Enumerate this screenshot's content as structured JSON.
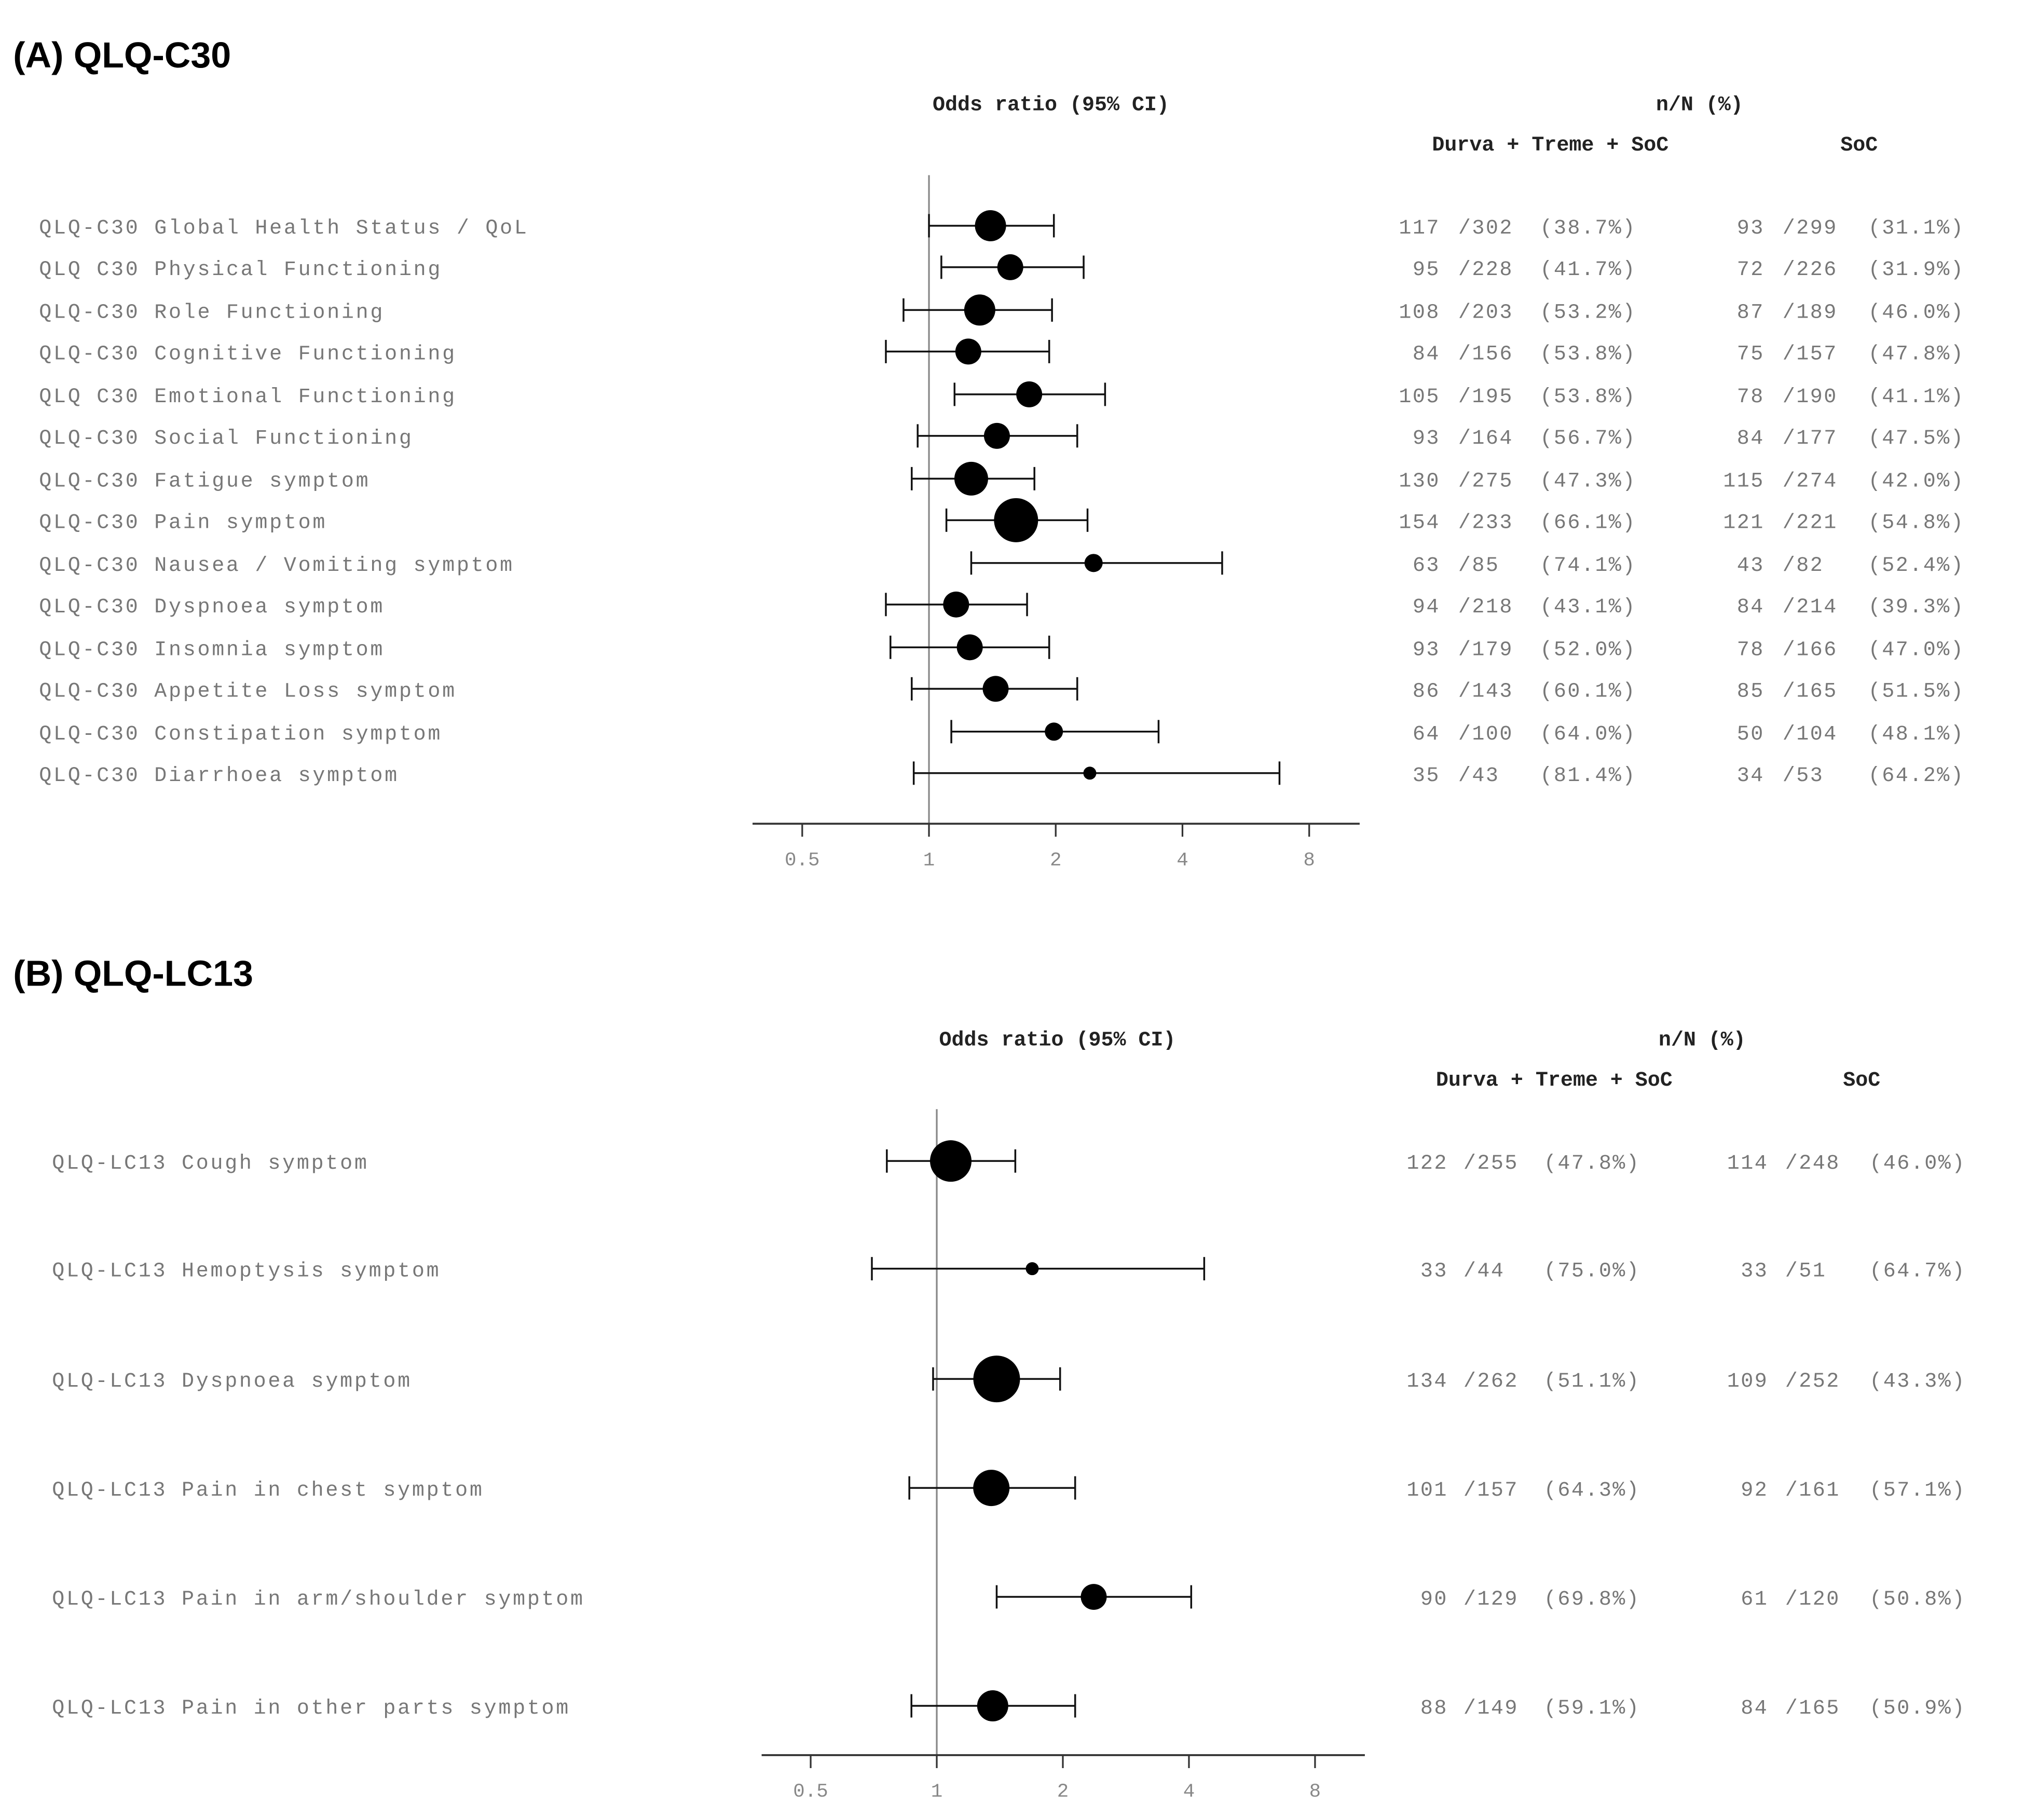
{
  "chart_data": [
    {
      "type": "forest",
      "title": "(A) QLQ-C30",
      "xlabel": "Odds ratio (95% CI)",
      "x_scale": "log2",
      "xlim": [
        0.35,
        11
      ],
      "x_ticks": [
        "0.5",
        "1",
        "2",
        "4",
        "8"
      ],
      "reference_line": 1,
      "table_header": "n/N (%)",
      "group_labels": [
        "Durva + Treme + SoC",
        "SoC"
      ],
      "rows": [
        {
          "label": "QLQ-C30 Global Health Status / QoL",
          "or": 1.4,
          "lo": 1.0,
          "hi": 1.98,
          "weight": 12,
          "g1": {
            "n": "117",
            "N": "/302",
            "pct": "(38.7%)"
          },
          "g2": {
            "n": "93",
            "N": "/299",
            "pct": "(31.1%)"
          }
        },
        {
          "label": "QLQ C30 Physical Functioning",
          "or": 1.56,
          "lo": 1.07,
          "hi": 2.33,
          "weight": 10,
          "g1": {
            "n": "95",
            "N": "/228",
            "pct": "(41.7%)"
          },
          "g2": {
            "n": "72",
            "N": "/226",
            "pct": "(31.9%)"
          }
        },
        {
          "label": "QLQ-C30 Role Functioning",
          "or": 1.32,
          "lo": 0.87,
          "hi": 1.96,
          "weight": 12,
          "g1": {
            "n": "108",
            "N": "/203",
            "pct": "(53.2%)"
          },
          "g2": {
            "n": "87",
            "N": "/189",
            "pct": "(46.0%)"
          }
        },
        {
          "label": "QLQ-C30 Cognitive Functioning",
          "or": 1.24,
          "lo": 0.79,
          "hi": 1.93,
          "weight": 10,
          "g1": {
            "n": "84",
            "N": "/156",
            "pct": "(53.8%)"
          },
          "g2": {
            "n": "75",
            "N": "/157",
            "pct": "(47.8%)"
          }
        },
        {
          "label": "QLQ C30 Emotional Functioning",
          "or": 1.73,
          "lo": 1.15,
          "hi": 2.62,
          "weight": 10,
          "g1": {
            "n": "105",
            "N": "/195",
            "pct": "(53.8%)"
          },
          "g2": {
            "n": "78",
            "N": "/190",
            "pct": "(41.1%)"
          }
        },
        {
          "label": "QLQ-C30 Social Functioning",
          "or": 1.45,
          "lo": 0.94,
          "hi": 2.25,
          "weight": 10,
          "g1": {
            "n": "93",
            "N": "/164",
            "pct": "(56.7%)"
          },
          "g2": {
            "n": "84",
            "N": "/177",
            "pct": "(47.5%)"
          }
        },
        {
          "label": "QLQ-C30 Fatigue symptom",
          "or": 1.26,
          "lo": 0.91,
          "hi": 1.78,
          "weight": 13,
          "g1": {
            "n": "130",
            "N": "/275",
            "pct": "(47.3%)"
          },
          "g2": {
            "n": "115",
            "N": "/274",
            "pct": "(42.0%)"
          }
        },
        {
          "label": "QLQ-C30 Pain symptom",
          "or": 1.61,
          "lo": 1.1,
          "hi": 2.38,
          "weight": 17,
          "g1": {
            "n": "154",
            "N": "/233",
            "pct": "(66.1%)"
          },
          "g2": {
            "n": "121",
            "N": "/221",
            "pct": "(54.8%)"
          }
        },
        {
          "label": "QLQ-C30 Nausea / Vomiting symptom",
          "or": 2.46,
          "lo": 1.26,
          "hi": 4.97,
          "weight": 7,
          "g1": {
            "n": "63",
            "N": "/85",
            "pct": "(74.1%)"
          },
          "g2": {
            "n": "43",
            "N": "/82",
            "pct": "(52.4%)"
          }
        },
        {
          "label": "QLQ-C30 Dyspnoea symptom",
          "or": 1.16,
          "lo": 0.79,
          "hi": 1.71,
          "weight": 10,
          "g1": {
            "n": "94",
            "N": "/218",
            "pct": "(43.1%)"
          },
          "g2": {
            "n": "84",
            "N": "/214",
            "pct": "(39.3%)"
          }
        },
        {
          "label": "QLQ-C30 Insomnia symptom",
          "or": 1.25,
          "lo": 0.81,
          "hi": 1.93,
          "weight": 10,
          "g1": {
            "n": "93",
            "N": "/179",
            "pct": "(52.0%)"
          },
          "g2": {
            "n": "78",
            "N": "/166",
            "pct": "(47.0%)"
          }
        },
        {
          "label": "QLQ-C30 Appetite Loss symptom",
          "or": 1.44,
          "lo": 0.91,
          "hi": 2.25,
          "weight": 10,
          "g1": {
            "n": "86",
            "N": "/143",
            "pct": "(60.1%)"
          },
          "g2": {
            "n": "85",
            "N": "/165",
            "pct": "(51.5%)"
          }
        },
        {
          "label": "QLQ-C30 Constipation symptom",
          "or": 1.98,
          "lo": 1.13,
          "hi": 3.51,
          "weight": 7,
          "g1": {
            "n": "64",
            "N": "/100",
            "pct": "(64.0%)"
          },
          "g2": {
            "n": "50",
            "N": "/104",
            "pct": "(48.1%)"
          }
        },
        {
          "label": "QLQ-C30 Diarrhoea symptom",
          "or": 2.41,
          "lo": 0.92,
          "hi": 6.8,
          "weight": 5,
          "g1": {
            "n": "35",
            "N": "/43",
            "pct": "(81.4%)"
          },
          "g2": {
            "n": "34",
            "N": "/53",
            "pct": "(64.2%)"
          }
        }
      ]
    },
    {
      "type": "forest",
      "title": "(B) QLQ-LC13",
      "xlabel": "Odds ratio (95% CI)",
      "x_scale": "log2",
      "xlim": [
        0.35,
        11
      ],
      "x_ticks": [
        "0.5",
        "1",
        "2",
        "4",
        "8"
      ],
      "reference_line": 1,
      "table_header": "n/N (%)",
      "group_labels": [
        "Durva + Treme + SoC",
        "SoC"
      ],
      "rows": [
        {
          "label": "QLQ-LC13 Cough symptom",
          "or": 1.08,
          "lo": 0.76,
          "hi": 1.54,
          "weight": 16,
          "g1": {
            "n": "122",
            "N": "/255",
            "pct": "(47.8%)"
          },
          "g2": {
            "n": "114",
            "N": "/248",
            "pct": "(46.0%)"
          }
        },
        {
          "label": "QLQ-LC13 Hemoptysis symptom",
          "or": 1.69,
          "lo": 0.7,
          "hi": 4.35,
          "weight": 5,
          "g1": {
            "n": "33",
            "N": "/44",
            "pct": "(75.0%)"
          },
          "g2": {
            "n": "33",
            "N": "/51",
            "pct": "(64.7%)"
          }
        },
        {
          "label": "QLQ-LC13 Dyspnoea symptom",
          "or": 1.39,
          "lo": 0.98,
          "hi": 1.97,
          "weight": 18,
          "g1": {
            "n": "134",
            "N": "/262",
            "pct": "(51.1%)"
          },
          "g2": {
            "n": "109",
            "N": "/252",
            "pct": "(43.3%)"
          }
        },
        {
          "label": "QLQ-LC13 Pain in chest symptom",
          "or": 1.35,
          "lo": 0.86,
          "hi": 2.14,
          "weight": 14,
          "g1": {
            "n": "101",
            "N": "/157",
            "pct": "(64.3%)"
          },
          "g2": {
            "n": "92",
            "N": "/161",
            "pct": "(57.1%)"
          }
        },
        {
          "label": "QLQ-LC13 Pain in arm/shoulder symptom",
          "or": 2.37,
          "lo": 1.39,
          "hi": 4.05,
          "weight": 10,
          "g1": {
            "n": "90",
            "N": "/129",
            "pct": "(69.8%)"
          },
          "g2": {
            "n": "61",
            "N": "/120",
            "pct": "(50.8%)"
          }
        },
        {
          "label": "QLQ-LC13 Pain in other parts symptom",
          "or": 1.36,
          "lo": 0.87,
          "hi": 2.14,
          "weight": 12,
          "g1": {
            "n": "88",
            "N": "/149",
            "pct": "(59.1%)"
          },
          "g2": {
            "n": "84",
            "N": "/165",
            "pct": "(50.9%)"
          }
        }
      ]
    }
  ]
}
